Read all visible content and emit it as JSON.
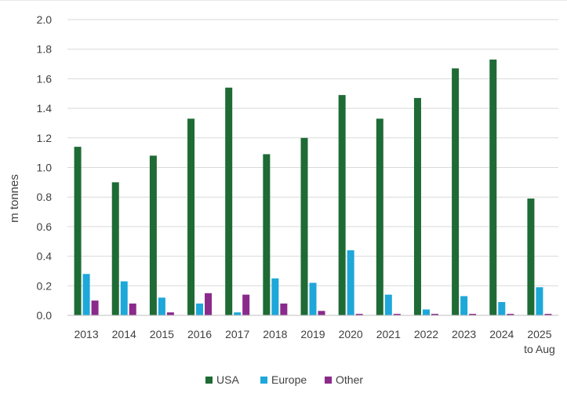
{
  "chart_data": {
    "type": "bar",
    "title": "",
    "xlabel": "",
    "ylabel": "m tonnes",
    "ylim": [
      0,
      2.0
    ],
    "yticks": [
      "0.0",
      "0.2",
      "0.4",
      "0.6",
      "0.8",
      "1.0",
      "1.2",
      "1.4",
      "1.6",
      "1.8",
      "2.0"
    ],
    "grid": true,
    "legend_position": "bottom",
    "categories": [
      [
        "2013"
      ],
      [
        "2014"
      ],
      [
        "2015"
      ],
      [
        "2016"
      ],
      [
        "2017"
      ],
      [
        "2018"
      ],
      [
        "2019"
      ],
      [
        "2020"
      ],
      [
        "2021"
      ],
      [
        "2022"
      ],
      [
        "2023"
      ],
      [
        "2024"
      ],
      [
        "2025",
        "to Aug"
      ]
    ],
    "series": [
      {
        "name": "USA",
        "color": "#1e6b35",
        "values": [
          1.14,
          0.9,
          1.08,
          1.33,
          1.54,
          1.09,
          1.2,
          1.49,
          1.33,
          1.47,
          1.67,
          1.73,
          0.79
        ]
      },
      {
        "name": "Europe",
        "color": "#1ea7d9",
        "values": [
          0.28,
          0.23,
          0.12,
          0.08,
          0.02,
          0.25,
          0.22,
          0.44,
          0.14,
          0.04,
          0.13,
          0.09,
          0.19
        ]
      },
      {
        "name": "Other",
        "color": "#8a2a8a",
        "values": [
          0.1,
          0.08,
          0.02,
          0.15,
          0.14,
          0.08,
          0.03,
          0.01,
          0.01,
          0.01,
          0.01,
          0.01,
          0.01
        ]
      }
    ]
  }
}
